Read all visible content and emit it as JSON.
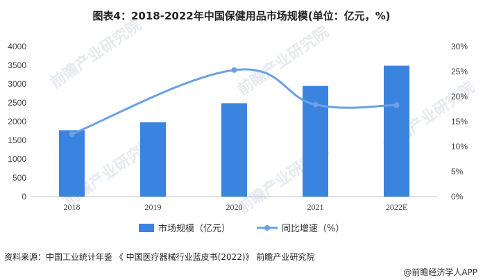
{
  "title": "图表4：2018-2022年中国保健用品市场规模(单位：亿元，%)",
  "source": "资料来源：中国工业统计年鉴 《 中国医疗器械行业蓝皮书(2022)》 前瞻产业研究院",
  "credit": "@前瞻经济学人APP",
  "watermark": "前瞻产业研究院",
  "chart_data": {
    "type": "bar",
    "categories": [
      "2018",
      "2019",
      "2020",
      "2021",
      "2022E"
    ],
    "series": [
      {
        "name": "市场规模（亿元）",
        "type": "bar",
        "axis": "left",
        "color": "#3a84e0",
        "values": [
          1770,
          1980,
          2490,
          2950,
          3490
        ]
      },
      {
        "name": "同比增速（%）",
        "type": "line",
        "axis": "right",
        "color": "#6aa0e6",
        "values": [
          12.5,
          null,
          25.3,
          18.4,
          18.3
        ]
      }
    ],
    "y_left": {
      "range": [
        0,
        4000
      ],
      "ticks": [
        "0",
        "500",
        "1000",
        "1500",
        "2000",
        "2500",
        "3000",
        "3500",
        "4000"
      ]
    },
    "y_right": {
      "range": [
        0,
        30
      ],
      "ticks": [
        "0%",
        "5%",
        "10%",
        "15%",
        "20%",
        "25%",
        "30%"
      ]
    },
    "legend_placement": "bottom-center",
    "grid": false
  }
}
